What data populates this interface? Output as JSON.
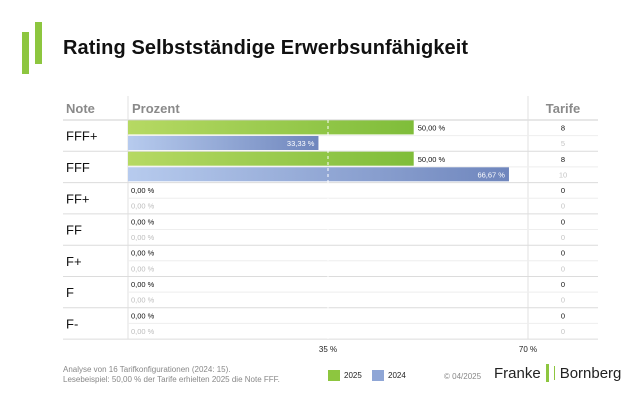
{
  "header": {
    "title": "Rating Selbstständige Erwerbsunfähigkeit"
  },
  "columns": {
    "note": "Note",
    "percent": "Prozent",
    "tariffs": "Tarife"
  },
  "chart_data": {
    "type": "bar",
    "title": "Rating Selbstständige Erwerbsunfähigkeit",
    "xlabel": "",
    "ylabel": "",
    "categories": [
      "FFF+",
      "FFF",
      "FF+",
      "FF",
      "F+",
      "F",
      "F-"
    ],
    "series": [
      {
        "name": "2025",
        "color": "#8dc63f",
        "values": [
          50.0,
          50.0,
          0.0,
          0.0,
          0.0,
          0.0,
          0.0
        ],
        "labels": [
          "50,00 %",
          "50,00 %",
          "0,00 %",
          "0,00 %",
          "0,00 %",
          "0,00 %",
          "0,00 %"
        ],
        "tariffs": [
          "8",
          "8",
          "0",
          "0",
          "0",
          "0",
          "0"
        ]
      },
      {
        "name": "2024",
        "color": "#8fa6d6",
        "values": [
          33.33,
          66.67,
          0.0,
          0.0,
          0.0,
          0.0,
          0.0
        ],
        "labels": [
          "33,33 %",
          "66,67 %",
          "0,00 %",
          "0,00 %",
          "0,00 %",
          "0,00 %",
          "0,00 %"
        ],
        "tariffs": [
          "5",
          "10",
          "0",
          "0",
          "0",
          "0",
          "0"
        ]
      }
    ],
    "xlim": [
      0,
      70
    ],
    "ticks": [
      {
        "value": 35,
        "label": "35 %"
      },
      {
        "value": 70,
        "label": "70 %"
      }
    ],
    "reference_line": 35
  },
  "footer": {
    "note_line1": "Analyse von 16 Tarifkonfigurationen (2024: 15).",
    "note_line2": "Lesebeispiel: 50,00 % der Tarife erhielten 2025 die Note FFF.",
    "legend_2025": "2025",
    "legend_2024": "2024",
    "copyright": "© 04/2025",
    "brand_left": "Franke",
    "brand_right": "Bornberg"
  }
}
